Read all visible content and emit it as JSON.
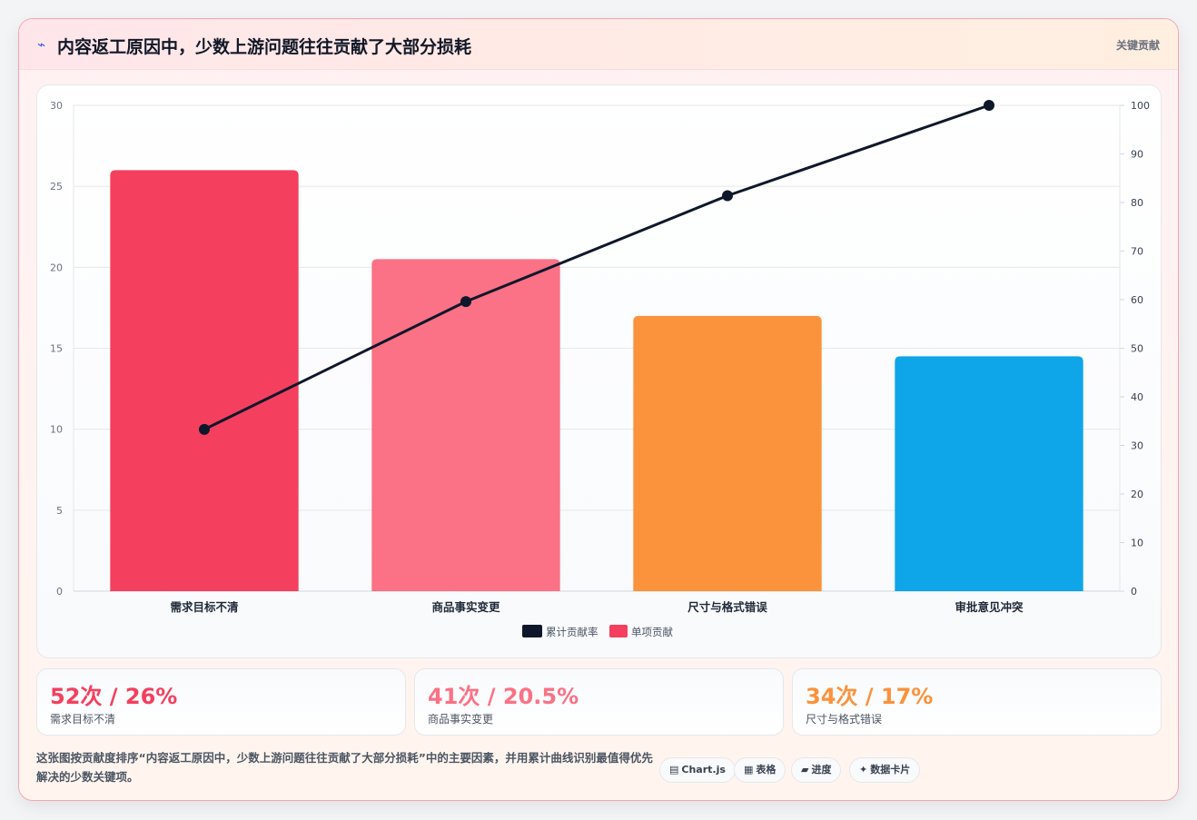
{
  "header": {
    "icon": "lightning-icon",
    "title": "内容返工原因中，少数上游问题往往贡献了大部分损耗",
    "badge": "关键贡献"
  },
  "chart_data": {
    "type": "bar",
    "categories": [
      "需求目标不清",
      "商品事实变更",
      "尺寸与格式错误",
      "审批意见冲突"
    ],
    "series": [
      {
        "name": "单项贡献",
        "type": "bar",
        "axis": "left",
        "values": [
          26,
          20.5,
          17,
          14.5
        ]
      },
      {
        "name": "累计贡献率",
        "type": "line",
        "axis": "right",
        "values": [
          33.3,
          59.6,
          81.4,
          100
        ]
      }
    ],
    "bar_colors": [
      "#f43f5e",
      "#fb7185",
      "#fb923c",
      "#0ea5e9"
    ],
    "line_color": "#0f172a",
    "y_left": {
      "min": 0,
      "max": 30,
      "ticks": [
        0,
        5,
        10,
        15,
        20,
        25,
        30
      ]
    },
    "y_right": {
      "min": 0,
      "max": 100,
      "ticks": [
        0,
        10,
        20,
        30,
        40,
        50,
        60,
        70,
        80,
        90,
        100
      ]
    },
    "legend": [
      "累计贡献率",
      "单项贡献"
    ],
    "legend_position": "bottom",
    "grid": true
  },
  "stats": [
    {
      "value": "52次 / 26%",
      "label": "需求目标不清",
      "color": "#f43f5e"
    },
    {
      "value": "41次 / 20.5%",
      "label": "商品事实变更",
      "color": "#fb7185"
    },
    {
      "value": "34次 / 17%",
      "label": "尺寸与格式错误",
      "color": "#fb923c"
    }
  ],
  "footer": {
    "description": "这张图按贡献度排序“内容返工原因中，少数上游问题往往贡献了大部分损耗”中的主要因素，并用累计曲线识别最值得优先解决的少数关键项。",
    "chips": [
      {
        "icon": "chart-icon",
        "glyph": "▤",
        "label": "Chart.js"
      },
      {
        "icon": "table-icon",
        "glyph": "▦",
        "label": "表格"
      },
      {
        "icon": "progress-icon",
        "glyph": "▰",
        "label": "进度"
      },
      {
        "icon": "sparkle-icon",
        "glyph": "✦",
        "label": "数据卡片"
      }
    ]
  }
}
